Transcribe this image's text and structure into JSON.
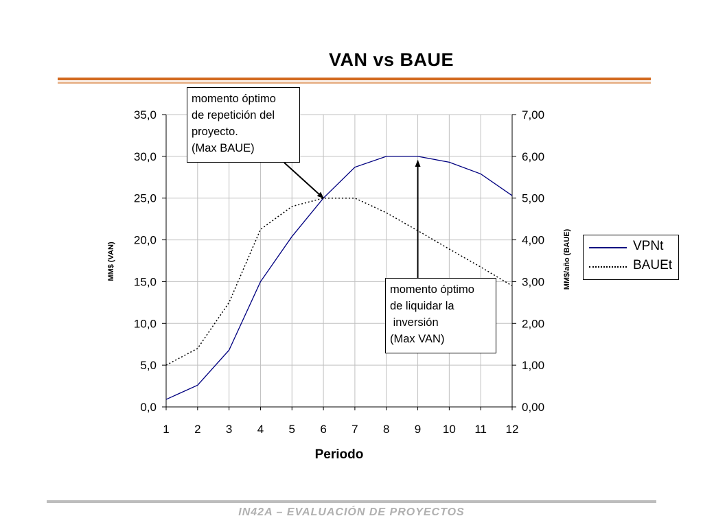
{
  "slide": {
    "footer": "IN42A – EVALUACIÓN DE PROYECTOS"
  },
  "colors": {
    "van_line": "#000080",
    "baue_line": "#000000",
    "rule_top": "#d2691e",
    "rule_bottom": "#e8b48c",
    "footer": "#b0b0b0"
  },
  "chart_data": {
    "type": "line",
    "title": "VAN vs BAUE",
    "xlabel": "Periodo",
    "ylabel_left": "MM$ (VAN)",
    "ylabel_right": "MM$/año (BAUE)",
    "categories": [
      "1",
      "2",
      "3",
      "4",
      "5",
      "6",
      "7",
      "8",
      "9",
      "10",
      "11",
      "12"
    ],
    "ylim_left": [
      0,
      35
    ],
    "ylim_right": [
      0,
      7
    ],
    "yticks_left": [
      "0,0",
      "5,0",
      "10,0",
      "15,0",
      "20,0",
      "25,0",
      "30,0",
      "35,0"
    ],
    "yticks_right": [
      "0,00",
      "1,00",
      "2,00",
      "3,00",
      "4,00",
      "5,00",
      "6,00",
      "7,00"
    ],
    "grid": true,
    "legend_position": "right",
    "series": [
      {
        "name": "VPNt",
        "axis": "left",
        "style": "solid",
        "values": [
          0.9,
          2.6,
          6.8,
          15.0,
          20.4,
          25.0,
          28.7,
          30.0,
          30.0,
          29.3,
          27.9,
          25.3
        ]
      },
      {
        "name": "BAUEt",
        "axis": "right",
        "style": "dotted",
        "values": [
          1.0,
          1.4,
          2.5,
          4.25,
          4.8,
          5.0,
          5.0,
          4.65,
          4.22,
          3.78,
          3.35,
          2.9
        ]
      }
    ],
    "annotations": [
      {
        "text": "momento óptimo\nde repetición del\nproyecto.\n(Max BAUE)",
        "target_period": 6,
        "target_axis": "right",
        "target_value": 5.0
      },
      {
        "text": "momento óptimo\nde liquidar la\n inversión\n(Max VAN)",
        "target_period": 9,
        "target_axis": "left",
        "target_value": 29.5
      }
    ]
  }
}
